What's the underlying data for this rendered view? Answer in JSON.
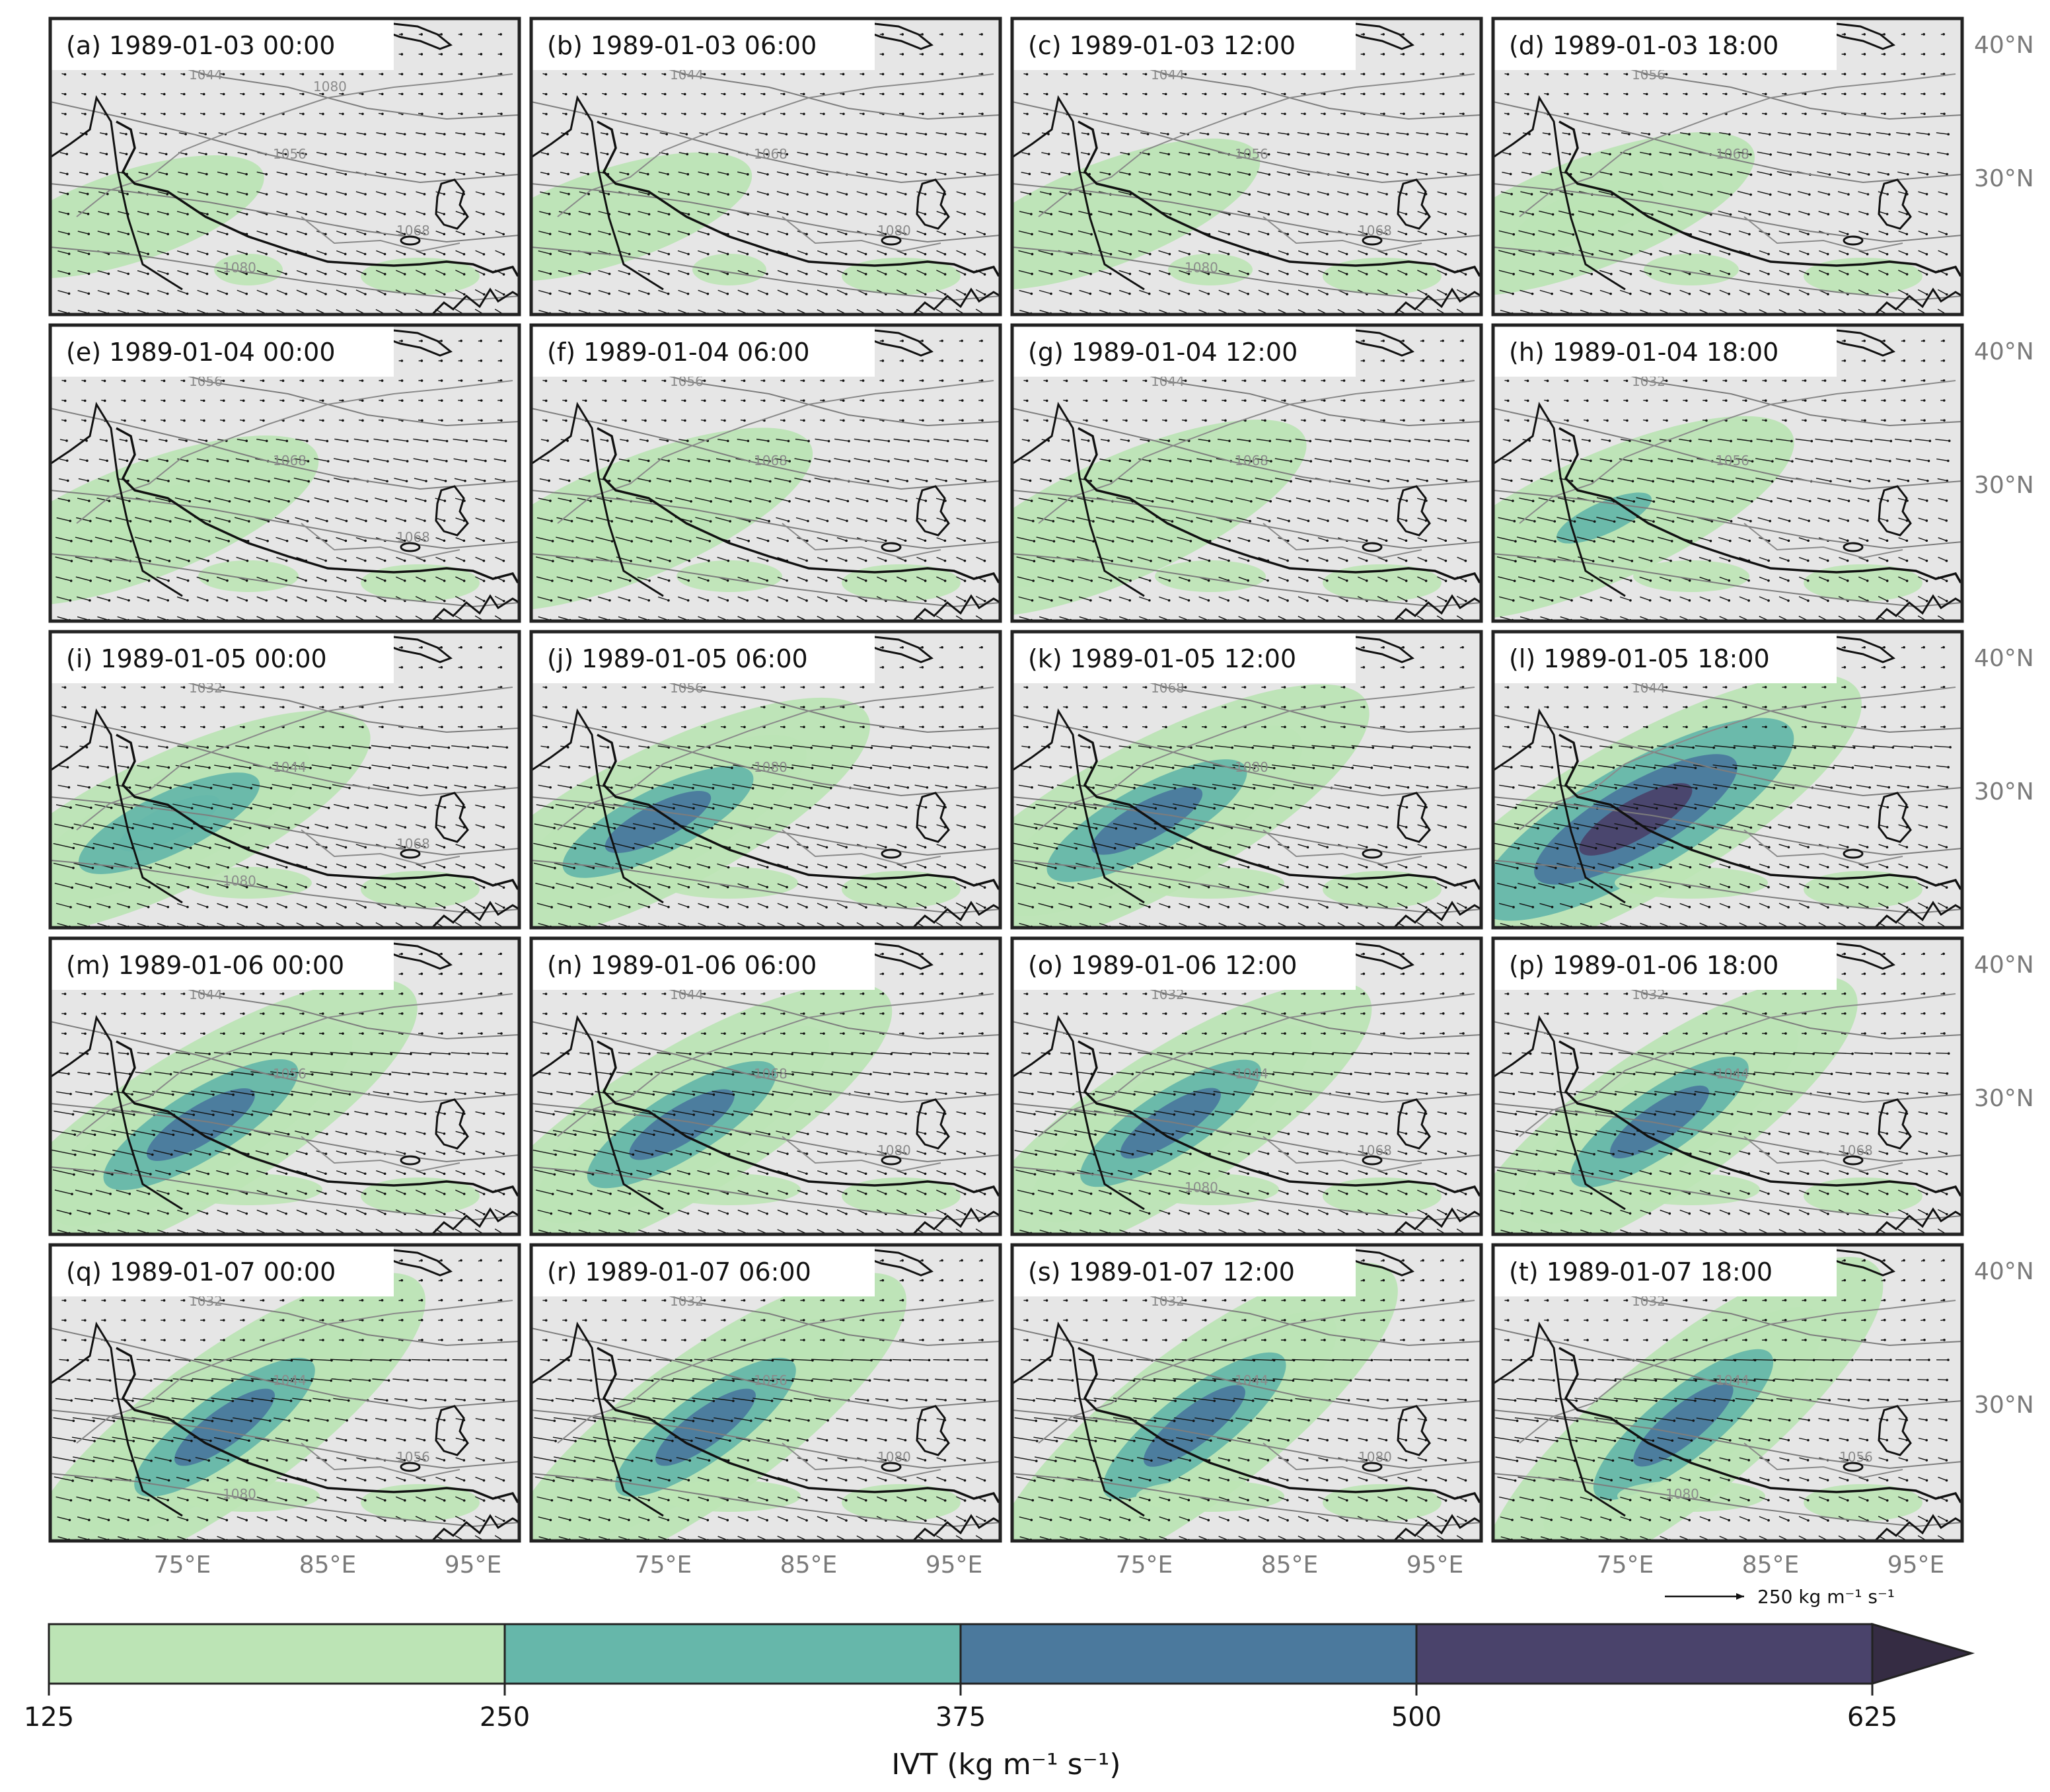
{
  "panels": [
    {
      "label": "(a) 1989-01-03 00:00",
      "contours": [
        "1044",
        "1056",
        "1068",
        "1080",
        "1080"
      ],
      "ar": {
        "strength": 0.15,
        "tilt": 0.0
      }
    },
    {
      "label": "(b) 1989-01-03 06:00",
      "contours": [
        "1044",
        "1068",
        "1080"
      ],
      "ar": {
        "strength": 0.2,
        "tilt": 0.0
      }
    },
    {
      "label": "(c) 1989-01-03 12:00",
      "contours": [
        "1044",
        "1056",
        "1068",
        "1080"
      ],
      "ar": {
        "strength": 0.3,
        "tilt": 0.1
      }
    },
    {
      "label": "(d) 1989-01-03 18:00",
      "contours": [
        "1056",
        "1068"
      ],
      "ar": {
        "strength": 0.4,
        "tilt": 0.1
      }
    },
    {
      "label": "(e) 1989-01-04 00:00",
      "contours": [
        "1056",
        "1068",
        "1068"
      ],
      "ar": {
        "strength": 0.45,
        "tilt": 0.1
      }
    },
    {
      "label": "(f) 1989-01-04 06:00",
      "contours": [
        "1056",
        "1068"
      ],
      "ar": {
        "strength": 0.5,
        "tilt": 0.15
      }
    },
    {
      "label": "(g) 1989-01-04 12:00",
      "contours": [
        "1044",
        "1068"
      ],
      "ar": {
        "strength": 0.55,
        "tilt": 0.2
      }
    },
    {
      "label": "(h) 1989-01-04 18:00",
      "contours": [
        "1032",
        "1056"
      ],
      "ar": {
        "strength": 0.6,
        "tilt": 0.2
      }
    },
    {
      "label": "(i) 1989-01-05 00:00",
      "contours": [
        "1032",
        "1044",
        "1068",
        "1080"
      ],
      "ar": {
        "strength": 0.7,
        "tilt": 0.25
      }
    },
    {
      "label": "(j) 1989-01-05 06:00",
      "contours": [
        "1056",
        "1080"
      ],
      "ar": {
        "strength": 0.8,
        "tilt": 0.3
      }
    },
    {
      "label": "(k) 1989-01-05 12:00",
      "contours": [
        "1068",
        "1080"
      ],
      "ar": {
        "strength": 0.9,
        "tilt": 0.35
      }
    },
    {
      "label": "(l) 1989-01-05 18:00",
      "contours": [
        "1044"
      ],
      "ar": {
        "strength": 0.95,
        "tilt": 0.4
      }
    },
    {
      "label": "(m) 1989-01-06 00:00",
      "contours": [
        "1044",
        "1056"
      ],
      "ar": {
        "strength": 0.9,
        "tilt": 0.45
      }
    },
    {
      "label": "(n) 1989-01-06 06:00",
      "contours": [
        "1044",
        "1068",
        "1080"
      ],
      "ar": {
        "strength": 0.85,
        "tilt": 0.45
      }
    },
    {
      "label": "(o) 1989-01-06 12:00",
      "contours": [
        "1032",
        "1044",
        "1068",
        "1080"
      ],
      "ar": {
        "strength": 0.8,
        "tilt": 0.5
      }
    },
    {
      "label": "(p) 1989-01-06 18:00",
      "contours": [
        "1032",
        "1044",
        "1068"
      ],
      "ar": {
        "strength": 0.8,
        "tilt": 0.55
      }
    },
    {
      "label": "(q) 1989-01-07 00:00",
      "contours": [
        "1032",
        "1044",
        "1056",
        "1080"
      ],
      "ar": {
        "strength": 0.85,
        "tilt": 0.6
      }
    },
    {
      "label": "(r) 1989-01-07 06:00",
      "contours": [
        "1032",
        "1056",
        "1080"
      ],
      "ar": {
        "strength": 0.85,
        "tilt": 0.6
      }
    },
    {
      "label": "(s) 1989-01-07 12:00",
      "contours": [
        "1032",
        "1044",
        "1080"
      ],
      "ar": {
        "strength": 0.9,
        "tilt": 0.65
      }
    },
    {
      "label": "(t) 1989-01-07 18:00",
      "contours": [
        "1032",
        "1044",
        "1056",
        "1080"
      ],
      "ar": {
        "strength": 0.9,
        "tilt": 0.7
      }
    }
  ],
  "lat_ticks": [
    "40°N",
    "30°N"
  ],
  "lon_ticks": [
    "75°E",
    "85°E",
    "95°E"
  ],
  "vector_key": {
    "label": "250 kg m⁻¹ s⁻¹",
    "value": 250
  },
  "colorbar": {
    "title": "IVT (kg m⁻¹ s⁻¹)",
    "ticks": [
      "125",
      "250",
      "375",
      "500",
      "625"
    ],
    "colors": [
      "#bce4b5",
      "#66b7aa",
      "#4b799d",
      "#4a436b",
      "#352c43"
    ],
    "extend": "max"
  },
  "colors": {
    "land": "#e6e6e6",
    "frame": "#222222",
    "border": "#111111",
    "contour": "#7d7d7d",
    "arrow": "#111111"
  }
}
